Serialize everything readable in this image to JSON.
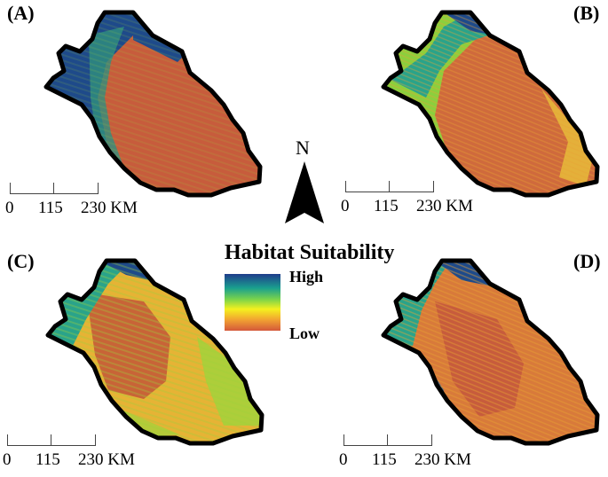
{
  "panels": [
    {
      "label": "(A)",
      "scale": {
        "t0": "0",
        "t1": "115",
        "t2": "230 KM"
      }
    },
    {
      "label": "(B)",
      "scale": {
        "t0": "0",
        "t1": "115",
        "t2": "230 KM"
      }
    },
    {
      "label": "(C)",
      "scale": {
        "t0": "0",
        "t1": "115",
        "t2": "230 KM"
      }
    },
    {
      "label": "(D)",
      "scale": {
        "t0": "0",
        "t1": "115",
        "t2": "230 KM"
      }
    }
  ],
  "north_arrow": {
    "label": "N"
  },
  "legend": {
    "title": "Habitat Suitability",
    "high": "High",
    "low": "Low"
  },
  "colors": {
    "high": "#1f3d8c",
    "mid": "#f4f11e",
    "low": "#d4583a",
    "outline": "#000000"
  }
}
